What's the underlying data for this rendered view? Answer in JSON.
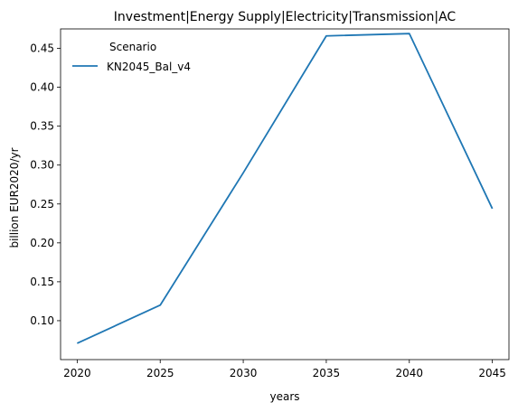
{
  "chart_data": {
    "type": "line",
    "title": "Investment|Energy Supply|Electricity|Transmission|AC",
    "xlabel": "years",
    "ylabel": "billion EUR2020/yr",
    "x": [
      2020,
      2025,
      2030,
      2035,
      2040,
      2045
    ],
    "xlim": [
      2019,
      2046
    ],
    "ylim": [
      0.05,
      0.475
    ],
    "xticks": [
      2020,
      2025,
      2030,
      2035,
      2040,
      2045
    ],
    "yticks": [
      0.1,
      0.15,
      0.2,
      0.25,
      0.3,
      0.35,
      0.4,
      0.45
    ],
    "ytick_labels": [
      "0.10",
      "0.15",
      "0.20",
      "0.25",
      "0.30",
      "0.35",
      "0.40",
      "0.45"
    ],
    "grid": false,
    "legend": {
      "title": "Scenario",
      "placement": "top-left"
    },
    "series": [
      {
        "name": "KN2045_Bal_v4",
        "color": "#1f77b4",
        "values": [
          0.071,
          0.12,
          0.29,
          0.466,
          0.469,
          0.244
        ]
      }
    ]
  }
}
